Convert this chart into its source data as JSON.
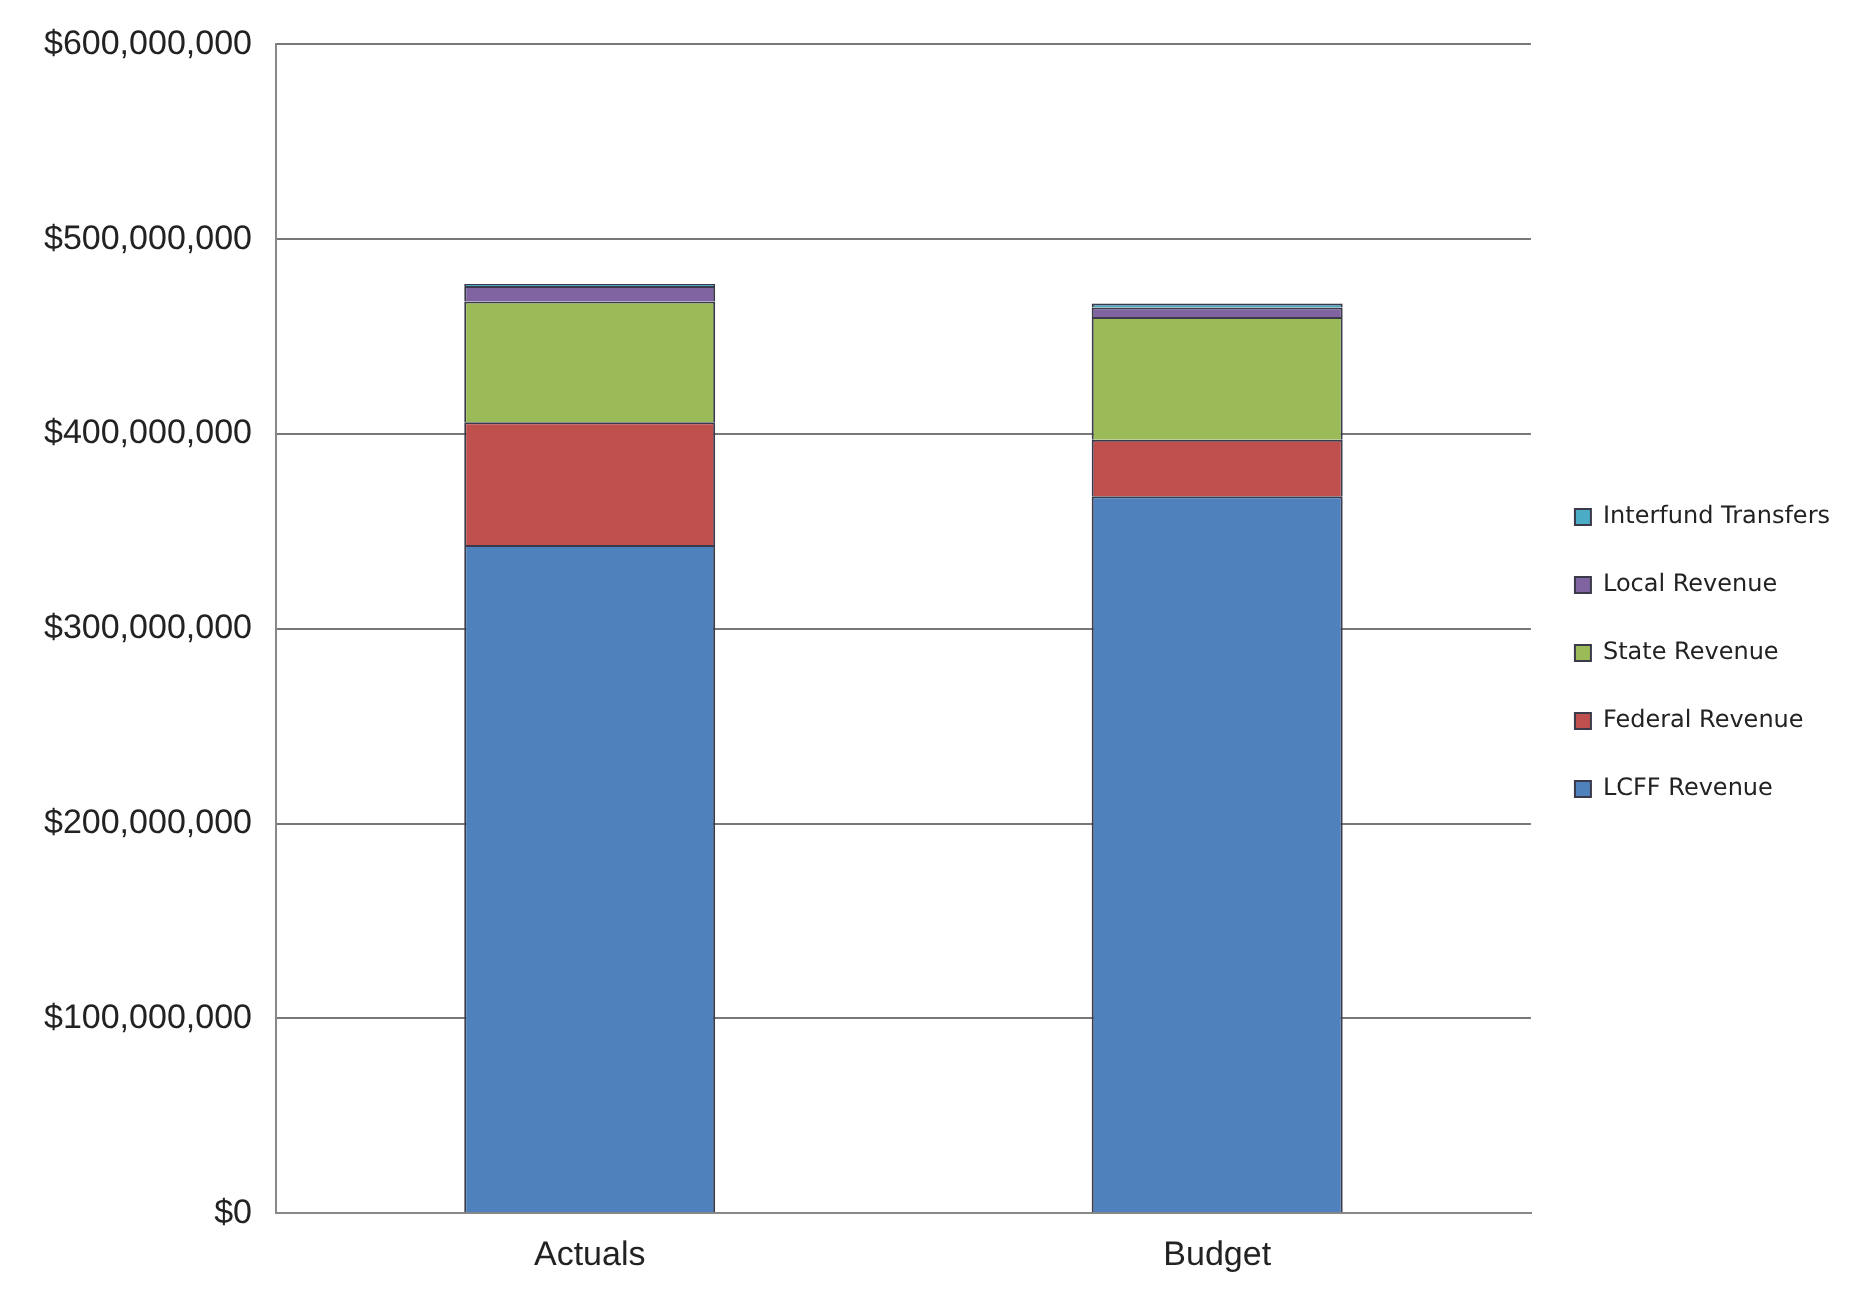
{
  "chart_data": {
    "type": "bar",
    "stacked": true,
    "categories": [
      "Actuals",
      "Budget"
    ],
    "series": [
      {
        "name": "LCFF Revenue",
        "color": "#4f81bd",
        "values": [
          343000000,
          368000000
        ]
      },
      {
        "name": "Federal Revenue",
        "color": "#c0504d",
        "values": [
          63000000,
          29000000
        ]
      },
      {
        "name": "State Revenue",
        "color": "#9bbb59",
        "values": [
          62000000,
          63000000
        ]
      },
      {
        "name": "Local Revenue",
        "color": "#8064a2",
        "values": [
          8000000,
          5000000
        ]
      },
      {
        "name": "Interfund Transfers",
        "color": "#4bacc6",
        "values": [
          1000000,
          2000000
        ]
      }
    ],
    "ylim": [
      0,
      600000000
    ],
    "yticks": [
      {
        "value": 0,
        "label": "$0"
      },
      {
        "value": 100000000,
        "label": "$100,000,000"
      },
      {
        "value": 200000000,
        "label": "$200,000,000"
      },
      {
        "value": 300000000,
        "label": "$300,000,000"
      },
      {
        "value": 400000000,
        "label": "$400,000,000"
      },
      {
        "value": 500000000,
        "label": "$500,000,000"
      },
      {
        "value": 600000000,
        "label": "$600,000,000"
      }
    ],
    "grid": "y",
    "legend": "right"
  }
}
